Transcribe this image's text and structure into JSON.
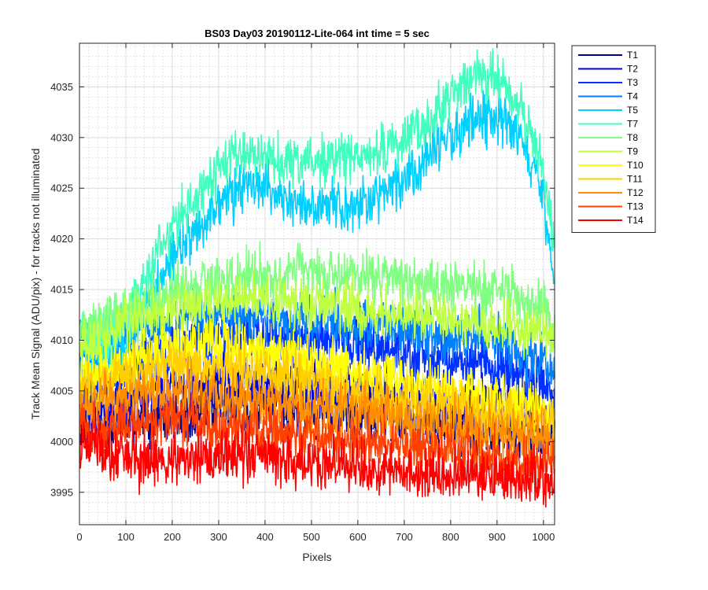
{
  "chart_data": {
    "type": "line",
    "title": "BS03 Day03 20190112-Lite-064 int time = 5 sec",
    "xlabel": "Pixels",
    "ylabel": "Track Mean Signal (ADU/pix) - for tracks not illuminated",
    "xlim": [
      0,
      1024
    ],
    "ylim": [
      3991.8,
      4039.3
    ],
    "xticks": [
      0,
      100,
      200,
      300,
      400,
      500,
      600,
      700,
      800,
      900,
      1000
    ],
    "yticks": [
      3995,
      4000,
      4005,
      4010,
      4015,
      4020,
      4025,
      4030,
      4035
    ],
    "grid": true,
    "minor_grid": true,
    "legend_position": "outside-top-right",
    "series": [
      {
        "name": "T1",
        "color": "#00008f",
        "noise": 1.6,
        "points": [
          [
            0,
            4001
          ],
          [
            100,
            4002
          ],
          [
            200,
            4003
          ],
          [
            300,
            4003.5
          ],
          [
            400,
            4003.5
          ],
          [
            500,
            4003
          ],
          [
            600,
            4002.5
          ],
          [
            700,
            4002
          ],
          [
            800,
            4001.5
          ],
          [
            900,
            4001
          ],
          [
            1000,
            4000.5
          ],
          [
            1024,
            4000
          ]
        ]
      },
      {
        "name": "T2",
        "color": "#0000df",
        "noise": 1.6,
        "points": [
          [
            0,
            4003
          ],
          [
            100,
            4004
          ],
          [
            200,
            4005.5
          ],
          [
            300,
            4006
          ],
          [
            400,
            4006
          ],
          [
            500,
            4005.5
          ],
          [
            600,
            4005
          ],
          [
            700,
            4004.5
          ],
          [
            800,
            4004
          ],
          [
            900,
            4003.5
          ],
          [
            1000,
            4003
          ],
          [
            1024,
            4002.5
          ]
        ]
      },
      {
        "name": "T3",
        "color": "#0030ff",
        "noise": 1.6,
        "points": [
          [
            0,
            4004
          ],
          [
            100,
            4007
          ],
          [
            200,
            4009.5
          ],
          [
            300,
            4010.5
          ],
          [
            400,
            4010.5
          ],
          [
            500,
            4010
          ],
          [
            600,
            4009.5
          ],
          [
            700,
            4008.5
          ],
          [
            800,
            4008
          ],
          [
            900,
            4007.5
          ],
          [
            1000,
            4005.5
          ],
          [
            1024,
            4003.5
          ]
        ]
      },
      {
        "name": "T4",
        "color": "#0080ff",
        "noise": 1.5,
        "points": [
          [
            0,
            4008
          ],
          [
            100,
            4010
          ],
          [
            200,
            4012
          ],
          [
            300,
            4012.5
          ],
          [
            400,
            4012.5
          ],
          [
            500,
            4012
          ],
          [
            600,
            4011.5
          ],
          [
            700,
            4011
          ],
          [
            800,
            4010.5
          ],
          [
            900,
            4010
          ],
          [
            1000,
            4008
          ],
          [
            1024,
            4006
          ]
        ]
      },
      {
        "name": "T5",
        "color": "#00cfff",
        "noise": 1.5,
        "points": [
          [
            0,
            4010
          ],
          [
            50,
            4008
          ],
          [
            100,
            4010
          ],
          [
            150,
            4014
          ],
          [
            200,
            4018
          ],
          [
            250,
            4021
          ],
          [
            300,
            4023.5
          ],
          [
            350,
            4025
          ],
          [
            400,
            4025
          ],
          [
            450,
            4024
          ],
          [
            500,
            4023
          ],
          [
            550,
            4023
          ],
          [
            600,
            4023.5
          ],
          [
            650,
            4024.5
          ],
          [
            700,
            4026
          ],
          [
            750,
            4028
          ],
          [
            800,
            4030
          ],
          [
            850,
            4031.5
          ],
          [
            900,
            4032
          ],
          [
            950,
            4030
          ],
          [
            1000,
            4024
          ],
          [
            1024,
            4014.5
          ]
        ]
      },
      {
        "name": "T7",
        "color": "#40ffbf",
        "noise": 1.5,
        "points": [
          [
            0,
            4011
          ],
          [
            50,
            4010
          ],
          [
            100,
            4012
          ],
          [
            150,
            4017
          ],
          [
            200,
            4021
          ],
          [
            250,
            4024
          ],
          [
            300,
            4027
          ],
          [
            350,
            4028.5
          ],
          [
            400,
            4028.5
          ],
          [
            450,
            4027.5
          ],
          [
            500,
            4027.5
          ],
          [
            550,
            4028
          ],
          [
            600,
            4028
          ],
          [
            650,
            4028.5
          ],
          [
            700,
            4030
          ],
          [
            750,
            4031.5
          ],
          [
            800,
            4034
          ],
          [
            850,
            4036
          ],
          [
            900,
            4036
          ],
          [
            950,
            4033
          ],
          [
            1000,
            4027
          ],
          [
            1024,
            4019.5
          ]
        ]
      },
      {
        "name": "T8",
        "color": "#80ff80",
        "noise": 1.5,
        "points": [
          [
            0,
            4011
          ],
          [
            100,
            4013
          ],
          [
            200,
            4015
          ],
          [
            300,
            4016
          ],
          [
            400,
            4016.5
          ],
          [
            500,
            4016.5
          ],
          [
            600,
            4016.5
          ],
          [
            700,
            4016
          ],
          [
            800,
            4015.5
          ],
          [
            900,
            4015
          ],
          [
            1000,
            4013
          ],
          [
            1024,
            4011
          ]
        ]
      },
      {
        "name": "T9",
        "color": "#bfff40",
        "noise": 1.5,
        "points": [
          [
            0,
            4009
          ],
          [
            100,
            4011.5
          ],
          [
            200,
            4013
          ],
          [
            300,
            4014
          ],
          [
            400,
            4014
          ],
          [
            500,
            4013.5
          ],
          [
            600,
            4013
          ],
          [
            700,
            4012.5
          ],
          [
            800,
            4012
          ],
          [
            900,
            4011.5
          ],
          [
            1000,
            4011
          ],
          [
            1024,
            4010.5
          ]
        ]
      },
      {
        "name": "T10",
        "color": "#ffff00",
        "noise": 1.6,
        "points": [
          [
            0,
            4006
          ],
          [
            100,
            4008
          ],
          [
            200,
            4009.5
          ],
          [
            300,
            4009.5
          ],
          [
            400,
            4009
          ],
          [
            500,
            4008
          ],
          [
            600,
            4007
          ],
          [
            700,
            4006
          ],
          [
            800,
            4005
          ],
          [
            900,
            4004
          ],
          [
            1000,
            4003
          ],
          [
            1024,
            4002
          ]
        ]
      },
      {
        "name": "T11",
        "color": "#ffcf00",
        "noise": 1.6,
        "points": [
          [
            0,
            4005
          ],
          [
            100,
            4006.5
          ],
          [
            200,
            4007.5
          ],
          [
            300,
            4007.5
          ],
          [
            400,
            4007
          ],
          [
            500,
            4006
          ],
          [
            600,
            4005
          ],
          [
            700,
            4004
          ],
          [
            800,
            4003.5
          ],
          [
            900,
            4002.5
          ],
          [
            1000,
            4002
          ],
          [
            1024,
            4001.5
          ]
        ]
      },
      {
        "name": "T12",
        "color": "#ff8f00",
        "noise": 1.6,
        "points": [
          [
            0,
            4003.5
          ],
          [
            100,
            4004.5
          ],
          [
            200,
            4005
          ],
          [
            300,
            4004.5
          ],
          [
            400,
            4004
          ],
          [
            500,
            4003.5
          ],
          [
            600,
            4003
          ],
          [
            700,
            4002
          ],
          [
            800,
            4001.5
          ],
          [
            900,
            4001
          ],
          [
            1000,
            4000
          ],
          [
            1024,
            3999.5
          ]
        ]
      },
      {
        "name": "T13",
        "color": "#ff4000",
        "noise": 1.6,
        "points": [
          [
            0,
            4001.5
          ],
          [
            100,
            4001.5
          ],
          [
            200,
            4002
          ],
          [
            300,
            4001.5
          ],
          [
            400,
            4001
          ],
          [
            500,
            4000.5
          ],
          [
            600,
            4000
          ],
          [
            700,
            3999.5
          ],
          [
            800,
            3999
          ],
          [
            900,
            3998.5
          ],
          [
            1000,
            3998
          ],
          [
            1024,
            3997.5
          ]
        ]
      },
      {
        "name": "T14",
        "color": "#ff0000",
        "noise": 1.6,
        "points": [
          [
            0,
            4000
          ],
          [
            100,
            3998.5
          ],
          [
            200,
            3998.5
          ],
          [
            300,
            3998.5
          ],
          [
            400,
            3998.5
          ],
          [
            500,
            3998
          ],
          [
            600,
            3997.5
          ],
          [
            700,
            3997
          ],
          [
            800,
            3997
          ],
          [
            900,
            3996.5
          ],
          [
            1000,
            3996
          ],
          [
            1024,
            3995.5
          ]
        ]
      }
    ]
  }
}
